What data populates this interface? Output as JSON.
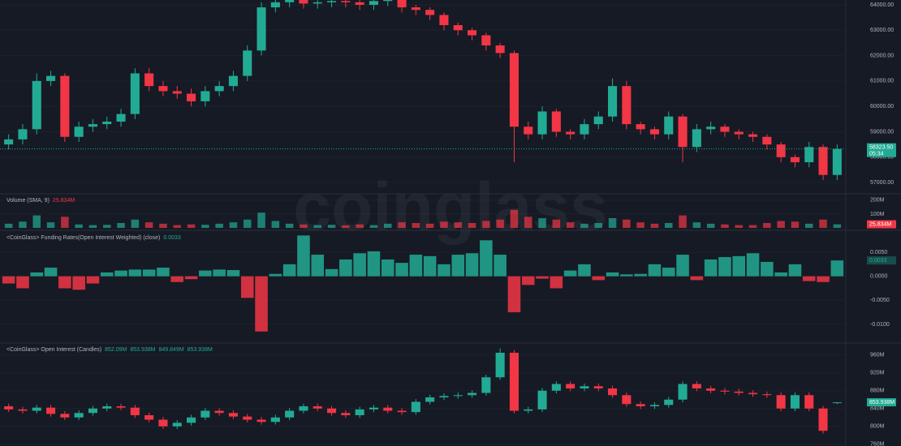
{
  "chart_data": [
    {
      "type": "candlestick",
      "open": [
        58500,
        58700,
        59100,
        61000,
        61200,
        58800,
        59200,
        59300,
        59400,
        59700,
        61300,
        60800,
        60600,
        60500,
        60200,
        60600,
        60800,
        61200,
        62200,
        63900,
        64100,
        64200,
        64050,
        64100,
        64150,
        64100,
        64000,
        64150,
        64200,
        63900,
        63800,
        63600,
        63200,
        63000,
        62800,
        62400,
        62100,
        59200,
        58900,
        59800,
        59000,
        58900,
        59300,
        59600,
        60800,
        59300,
        59100,
        58900,
        59600,
        58400,
        59100,
        59200,
        59000,
        58900,
        58800,
        58500,
        58000,
        57800,
        58400,
        57300
      ],
      "high": [
        58900,
        59300,
        61300,
        61400,
        61300,
        59400,
        59500,
        59600,
        59900,
        61500,
        61500,
        61000,
        60800,
        60700,
        60800,
        61000,
        61400,
        62400,
        64100,
        64300,
        64350,
        64300,
        64250,
        64300,
        64300,
        64250,
        64250,
        64300,
        64300,
        64000,
        63900,
        63700,
        63300,
        63100,
        62900,
        62500,
        62200,
        59400,
        60000,
        59900,
        59100,
        59500,
        59800,
        61100,
        61000,
        59400,
        59200,
        59800,
        59700,
        59300,
        59400,
        59300,
        59100,
        59000,
        58900,
        58600,
        58100,
        58600,
        58500,
        58500
      ],
      "low": [
        58300,
        58500,
        58900,
        60800,
        58600,
        58600,
        59000,
        59100,
        59200,
        59500,
        60600,
        60400,
        60300,
        60000,
        60000,
        60400,
        60600,
        61000,
        62000,
        63700,
        63900,
        63850,
        63850,
        63900,
        63900,
        63800,
        63800,
        63950,
        63700,
        63600,
        63400,
        63000,
        62800,
        62600,
        62200,
        61900,
        57800,
        58700,
        58700,
        58800,
        58700,
        58700,
        59100,
        59400,
        59100,
        58900,
        58700,
        58700,
        57800,
        58200,
        58900,
        58800,
        58700,
        58600,
        58300,
        57800,
        57600,
        57600,
        57100,
        57100
      ],
      "close": [
        58700,
        59100,
        61000,
        61200,
        58800,
        59200,
        59300,
        59400,
        59700,
        61300,
        60800,
        60600,
        60500,
        60200,
        60600,
        60800,
        61200,
        62200,
        63900,
        64100,
        64200,
        64050,
        64100,
        64150,
        64100,
        64000,
        64150,
        64200,
        63900,
        63800,
        63600,
        63200,
        63000,
        62800,
        62400,
        62100,
        59200,
        58900,
        59800,
        59000,
        58900,
        59300,
        59600,
        60800,
        59300,
        59100,
        58900,
        59600,
        58400,
        59100,
        59200,
        59000,
        58900,
        58800,
        58500,
        58000,
        57800,
        58400,
        57300,
        58323.5
      ],
      "up_color": "#22ab94",
      "down_color": "#f23645",
      "ylim": [
        56620,
        64190
      ],
      "yticks": [
        {
          "value": 57000,
          "label": "57000.00"
        },
        {
          "value": 58000,
          "label": "58000.00"
        },
        {
          "value": 59000,
          "label": "59000.00"
        },
        {
          "value": 60000,
          "label": "60000.00"
        },
        {
          "value": 61000,
          "label": "61000.00"
        },
        {
          "value": 62000,
          "label": "62000.00"
        },
        {
          "value": 63000,
          "label": "63000.00"
        },
        {
          "value": 64000,
          "label": "64000.00"
        }
      ],
      "last_label": "58323.50",
      "countdown": "05:34",
      "watermark": "coinglass"
    },
    {
      "type": "bar",
      "title": "Volume (SMA, 9)",
      "values": [
        30,
        45,
        90,
        40,
        80,
        25,
        20,
        22,
        35,
        60,
        40,
        30,
        20,
        25,
        22,
        30,
        40,
        60,
        110,
        50,
        30,
        25,
        20,
        22,
        18,
        25,
        20,
        30,
        40,
        35,
        30,
        45,
        40,
        35,
        50,
        60,
        130,
        80,
        70,
        60,
        40,
        30,
        35,
        70,
        60,
        40,
        30,
        35,
        90,
        40,
        30,
        25,
        20,
        20,
        35,
        50,
        45,
        30,
        60,
        25.834
      ],
      "up_color": "#22ab94",
      "down_color": "#f23645",
      "ylim": [
        0,
        240
      ],
      "yticks": [
        {
          "value": 100,
          "label": "100M"
        },
        {
          "value": 200,
          "label": "200M"
        }
      ],
      "last_label": "25.834M"
    },
    {
      "type": "bar",
      "title": "<CoinGlass> Funding Rates(Open Interest Weighted) (close)",
      "values": [
        -0.0015,
        -0.0025,
        0.0008,
        0.0018,
        -0.0025,
        -0.0028,
        -0.0015,
        0.0008,
        0.0012,
        0.0014,
        0.0014,
        0.0018,
        -0.0012,
        -0.0006,
        0.0012,
        0.0014,
        0.0013,
        -0.0045,
        -0.0115,
        0.0005,
        0.0025,
        0.0085,
        0.0045,
        0.0015,
        0.0035,
        0.0048,
        0.0052,
        0.0035,
        0.0028,
        0.0045,
        0.0042,
        0.0025,
        0.0045,
        0.0048,
        0.0075,
        0.0045,
        -0.0075,
        -0.0018,
        -0.0005,
        -0.0025,
        0.0012,
        0.0025,
        -0.0008,
        0.0008,
        0.0004,
        0.0005,
        0.0025,
        0.0018,
        0.0045,
        -0.0008,
        0.0035,
        0.004,
        0.0042,
        0.0048,
        0.003,
        0.0008,
        0.0025,
        -0.001,
        -0.0012,
        0.0033
      ],
      "up_color": "#22ab94",
      "down_color": "#f23645",
      "ylim": [
        -0.01373,
        0.00924
      ],
      "yticks": [
        {
          "value": -0.01,
          "label": "-0.0100"
        },
        {
          "value": -0.005,
          "label": "-0.0050"
        },
        {
          "value": 0,
          "label": "0.0000"
        },
        {
          "value": 0.005,
          "label": "0.0050"
        }
      ]
    },
    {
      "type": "candlestick",
      "title": "<CoinGlass> Open Interest (Candles)",
      "open": [
        845,
        838,
        835,
        842,
        828,
        820,
        830,
        840,
        845,
        842,
        825,
        815,
        800,
        808,
        820,
        835,
        830,
        822,
        815,
        810,
        820,
        835,
        845,
        840,
        830,
        825,
        838,
        842,
        835,
        832,
        855,
        865,
        868,
        870,
        875,
        910,
        965,
        835,
        838,
        880,
        895,
        885,
        890,
        885,
        870,
        850,
        845,
        848,
        860,
        895,
        885,
        880,
        878,
        875,
        872,
        870,
        840,
        870,
        840,
        852.09
      ],
      "high": [
        851,
        844,
        848,
        848,
        834,
        836,
        846,
        851,
        851,
        848,
        831,
        821,
        814,
        826,
        841,
        841,
        836,
        828,
        821,
        826,
        841,
        851,
        851,
        846,
        836,
        844,
        848,
        848,
        841,
        861,
        871,
        874,
        876,
        881,
        916,
        975,
        971,
        844,
        886,
        901,
        901,
        896,
        896,
        891,
        876,
        856,
        854,
        866,
        901,
        901,
        891,
        886,
        884,
        881,
        878,
        876,
        876,
        876,
        846,
        853.938
      ],
      "low": [
        832,
        829,
        829,
        822,
        814,
        814,
        824,
        834,
        836,
        819,
        809,
        794,
        794,
        802,
        814,
        824,
        816,
        809,
        804,
        804,
        814,
        829,
        834,
        824,
        819,
        819,
        832,
        829,
        826,
        826,
        849,
        859,
        862,
        864,
        869,
        904,
        829,
        829,
        832,
        874,
        879,
        879,
        879,
        864,
        844,
        839,
        839,
        842,
        854,
        879,
        874,
        872,
        869,
        866,
        864,
        834,
        834,
        834,
        784,
        849.849
      ],
      "close": [
        838,
        835,
        842,
        828,
        820,
        830,
        840,
        845,
        842,
        825,
        815,
        800,
        808,
        820,
        835,
        830,
        822,
        815,
        810,
        820,
        835,
        845,
        840,
        830,
        825,
        838,
        842,
        835,
        832,
        855,
        865,
        868,
        870,
        875,
        910,
        965,
        835,
        838,
        880,
        895,
        885,
        890,
        885,
        870,
        850,
        845,
        848,
        860,
        895,
        885,
        880,
        878,
        875,
        872,
        870,
        840,
        870,
        840,
        790,
        853.938
      ],
      "up_color": "#22ab94",
      "down_color": "#f23645",
      "ylim": [
        756,
        985
      ],
      "yticks": [
        {
          "value": 760,
          "label": "760M"
        },
        {
          "value": 800,
          "label": "800M"
        },
        {
          "value": 840,
          "label": "840M"
        },
        {
          "value": 880,
          "label": "880M"
        },
        {
          "value": 920,
          "label": "920M"
        },
        {
          "value": 960,
          "label": "960M"
        }
      ],
      "legend_labels": [
        "852.09M",
        "853.938M",
        "849.849M",
        "853.938M"
      ],
      "last_label": "853.938M"
    }
  ]
}
